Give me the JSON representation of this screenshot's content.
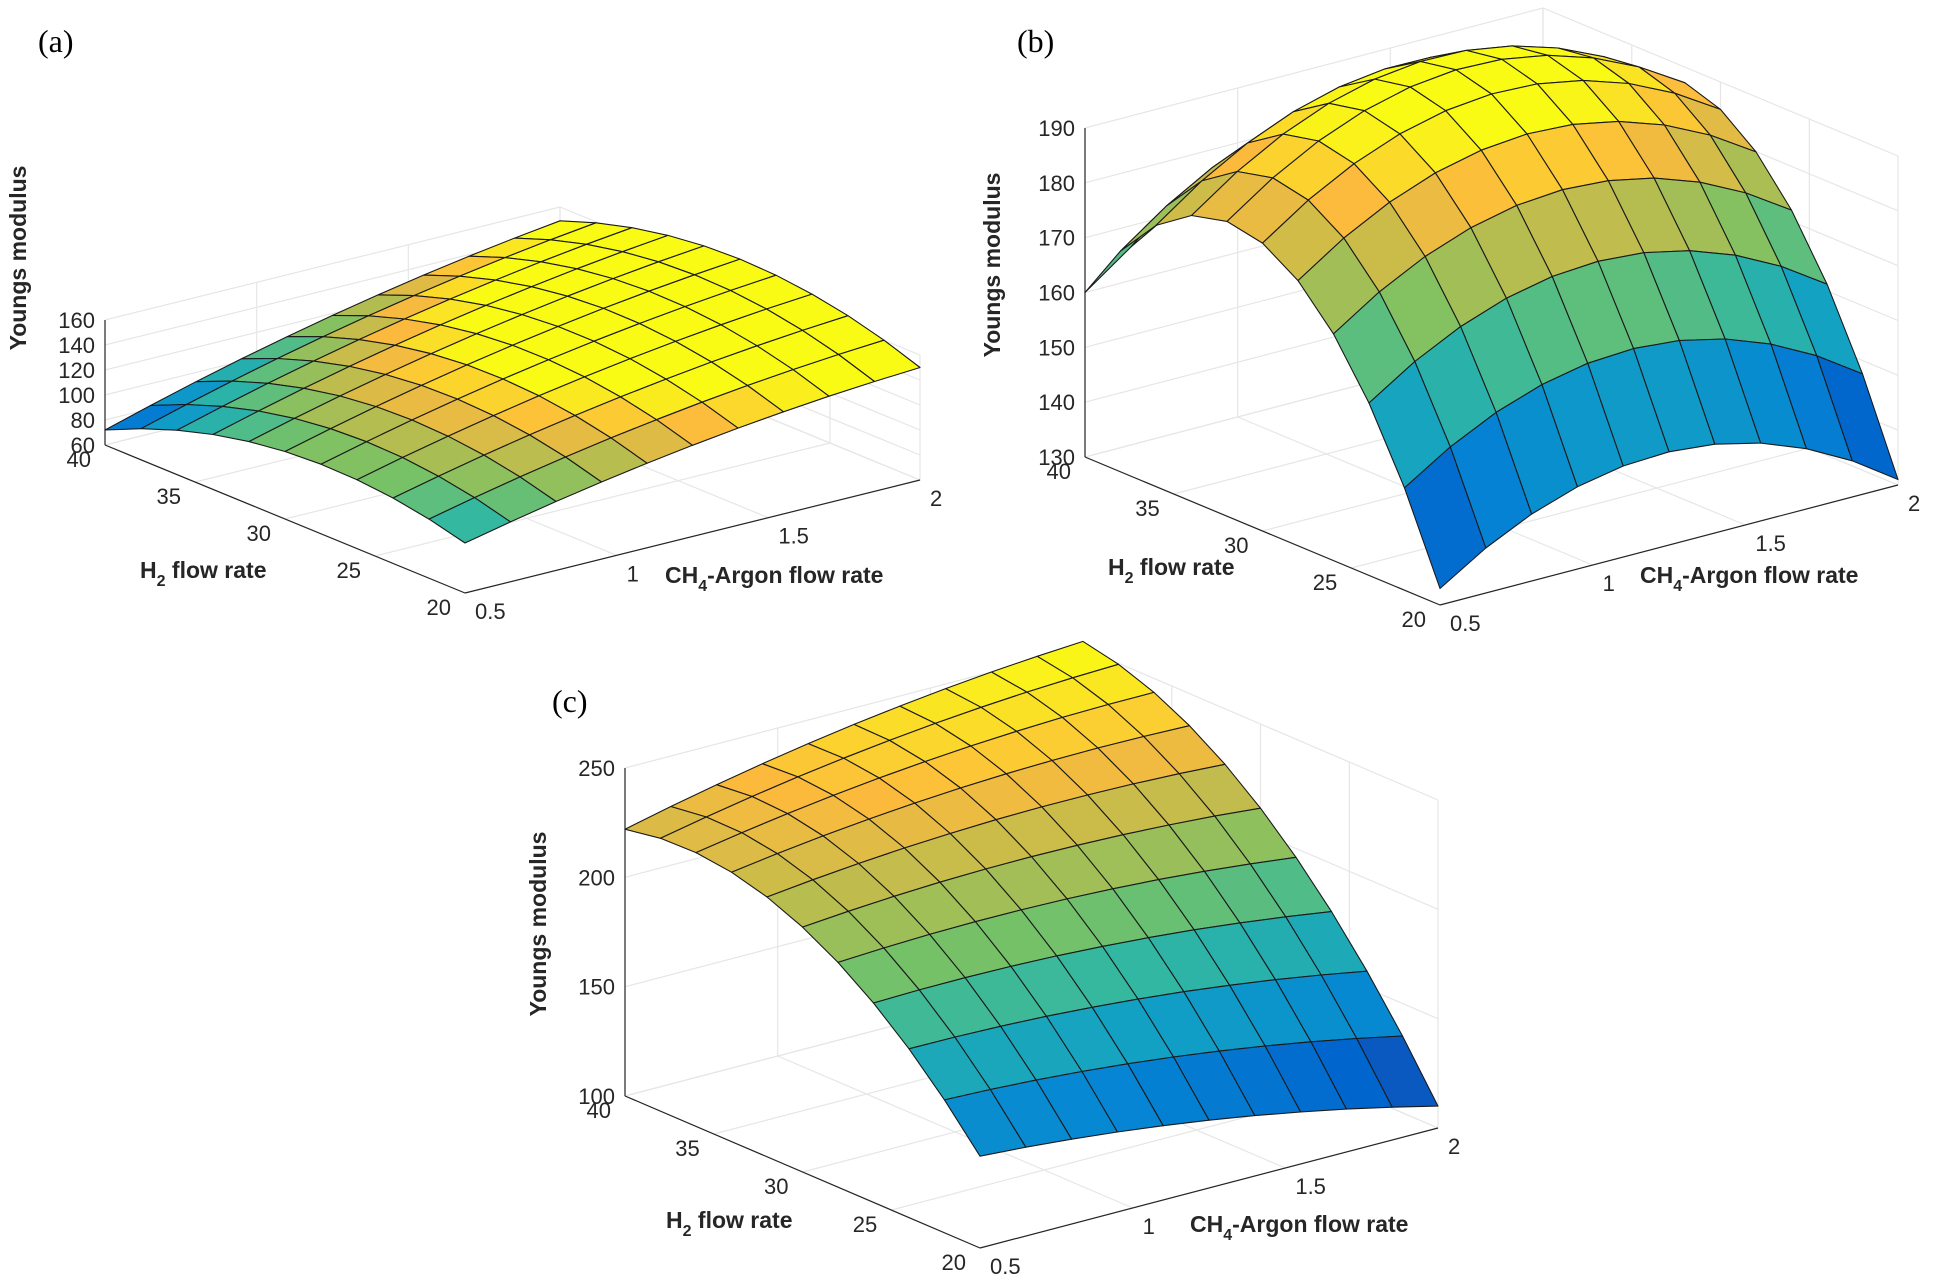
{
  "figure": {
    "panel_labels": [
      "(a)",
      "(b)",
      "(c)"
    ]
  },
  "chart_data": [
    {
      "type": "surface",
      "panel": "(a)",
      "zlabel": "Youngs modulus",
      "xlabel_main": "CH",
      "xlabel_sub": "4",
      "xlabel_rest": "-Argon flow rate",
      "ylabel_main": "H",
      "ylabel_sub": "2",
      "ylabel_rest": " flow rate",
      "xlim": [
        0.5,
        2
      ],
      "ylim": [
        20,
        40
      ],
      "zlim": [
        60,
        160
      ],
      "xticks": [
        "0.5",
        "1",
        "1.5",
        "2"
      ],
      "yticks": [
        "20",
        "25",
        "30",
        "35",
        "40"
      ],
      "zticks": [
        "60",
        "80",
        "100",
        "120",
        "140",
        "160"
      ],
      "clim": [
        65,
        150
      ],
      "x_range": [
        0.5,
        2
      ],
      "y_range": [
        20,
        40
      ],
      "z_corners": {
        "x_min_y_min": 100,
        "x_max_y_min": 150,
        "x_min_y_max": 72,
        "x_max_y_max": 149
      },
      "z_curvature": {
        "along_x": 8,
        "along_y": 28
      }
    },
    {
      "type": "surface",
      "panel": "(b)",
      "zlabel": "Youngs modulus",
      "xlabel_main": "CH",
      "xlabel_sub": "4",
      "xlabel_rest": "-Argon flow rate",
      "ylabel_main": "H",
      "ylabel_sub": "2",
      "ylabel_rest": " flow rate",
      "xlim": [
        0.5,
        2
      ],
      "ylim": [
        20,
        40
      ],
      "zlim": [
        130,
        190
      ],
      "xticks": [
        "0.5",
        "1",
        "1.5",
        "2"
      ],
      "yticks": [
        "20",
        "25",
        "30",
        "35",
        "40"
      ],
      "zticks": [
        "130",
        "140",
        "150",
        "160",
        "170",
        "180",
        "190"
      ],
      "clim": [
        133,
        196
      ],
      "x_range": [
        0.5,
        2
      ],
      "y_range": [
        20,
        40
      ],
      "z_corners": {
        "x_min_y_min": 133,
        "x_max_y_min": 131,
        "x_min_y_max": 160,
        "x_max_y_max": 167
      },
      "z_curvature": {
        "along_x": 15,
        "along_y": 36
      }
    },
    {
      "type": "surface",
      "panel": "(c)",
      "zlabel": "Youngs modulus",
      "xlabel_main": "CH",
      "xlabel_sub": "4",
      "xlabel_rest": "-Argon flow rate",
      "ylabel_main": "H",
      "ylabel_sub": "2",
      "ylabel_rest": " flow rate",
      "xlim": [
        0.5,
        2
      ],
      "ylim": [
        20,
        40
      ],
      "zlim": [
        100,
        250
      ],
      "xticks": [
        "0.5",
        "1",
        "1.5",
        "2"
      ],
      "yticks": [
        "20",
        "25",
        "30",
        "35",
        "40"
      ],
      "zticks": [
        "100",
        "150",
        "200",
        "250"
      ],
      "clim": [
        110,
        252
      ],
      "x_range": [
        0.5,
        2
      ],
      "y_range": [
        20,
        40
      ],
      "z_corners": {
        "x_min_y_min": 142,
        "x_max_y_min": 110,
        "x_min_y_max": 222,
        "x_max_y_max": 253
      },
      "z_curvature": {
        "along_x": 5,
        "along_y": 30
      }
    }
  ]
}
